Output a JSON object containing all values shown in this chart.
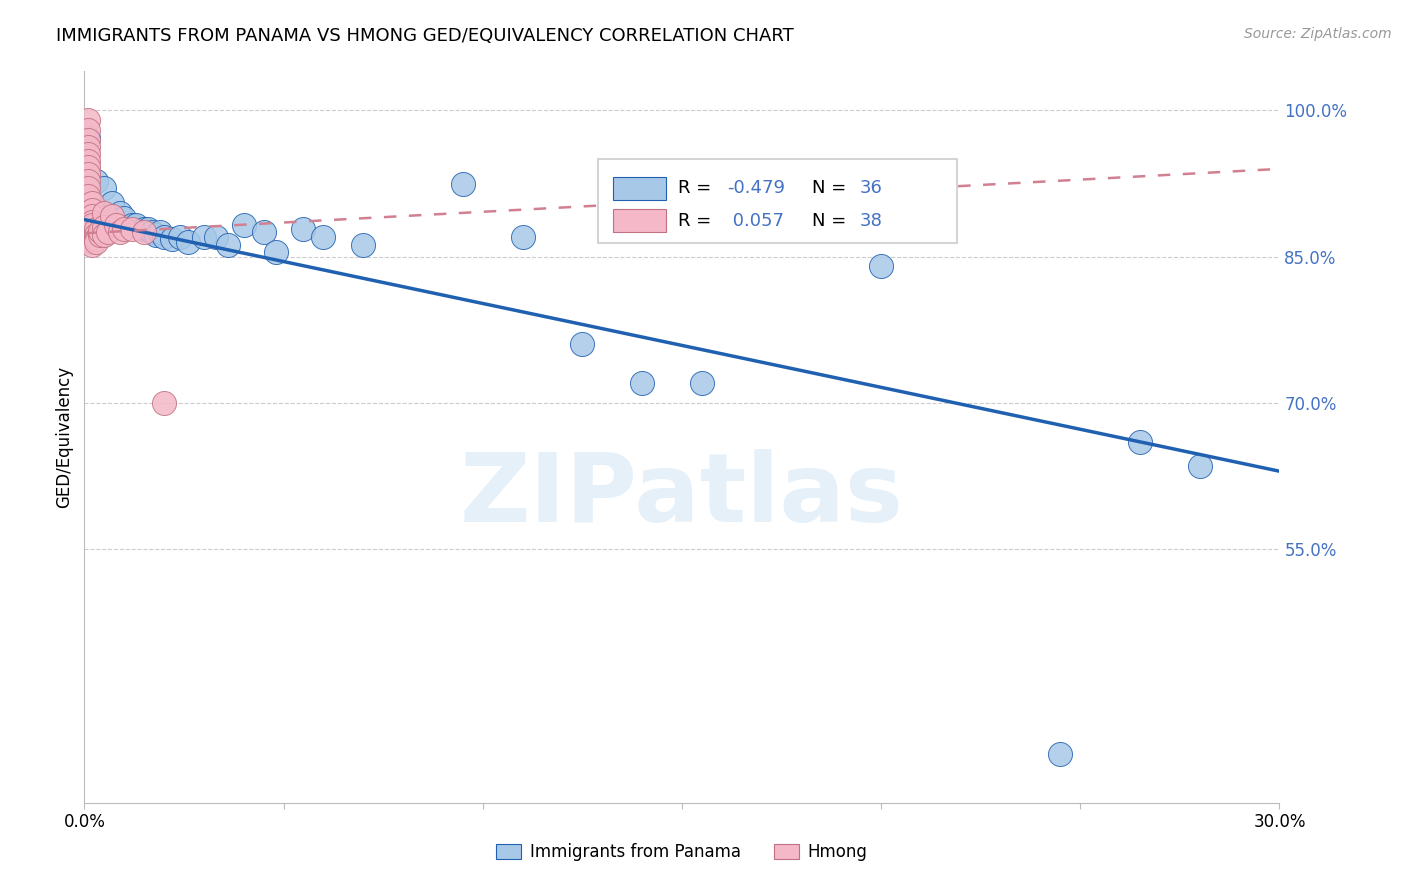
{
  "title": "IMMIGRANTS FROM PANAMA VS HMONG GED/EQUIVALENCY CORRELATION CHART",
  "source": "Source: ZipAtlas.com",
  "ylabel": "GED/Equivalency",
  "xlim": [
    0.0,
    0.3
  ],
  "ylim": [
    0.29,
    1.04
  ],
  "xticks": [
    0.0,
    0.05,
    0.1,
    0.15,
    0.2,
    0.25,
    0.3
  ],
  "xticklabels": [
    "0.0%",
    "",
    "",
    "",
    "",
    "",
    "30.0%"
  ],
  "yticks_right": [
    0.55,
    0.7,
    0.85,
    1.0
  ],
  "ytick_right_labels": [
    "55.0%",
    "70.0%",
    "85.0%",
    "100.0%"
  ],
  "legend_label1": "Immigrants from Panama",
  "legend_label2": "Hmong",
  "blue_color": "#a8c8e8",
  "pink_color": "#f4b8c8",
  "line_blue": "#2060b0",
  "line_pink": "#d08090",
  "watermark": "ZIPatlas",
  "panama_x": [
    0.001,
    0.003,
    0.005,
    0.007,
    0.009,
    0.01,
    0.012,
    0.013,
    0.015,
    0.016,
    0.017,
    0.018,
    0.019,
    0.02,
    0.022,
    0.024,
    0.026,
    0.03,
    0.033,
    0.036,
    0.04,
    0.045,
    0.048,
    0.055,
    0.06,
    0.07,
    0.095,
    0.11,
    0.125,
    0.14,
    0.155,
    0.165,
    0.2,
    0.245,
    0.265,
    0.28
  ],
  "panama_y": [
    0.972,
    0.928,
    0.92,
    0.905,
    0.895,
    0.89,
    0.882,
    0.882,
    0.878,
    0.878,
    0.875,
    0.872,
    0.875,
    0.87,
    0.868,
    0.87,
    0.865,
    0.87,
    0.87,
    0.862,
    0.882,
    0.875,
    0.855,
    0.878,
    0.87,
    0.862,
    0.925,
    0.87,
    0.76,
    0.72,
    0.72,
    0.878,
    0.84,
    0.34,
    0.66,
    0.635
  ],
  "hmong_x": [
    0.001,
    0.001,
    0.001,
    0.001,
    0.001,
    0.001,
    0.001,
    0.001,
    0.001,
    0.001,
    0.001,
    0.002,
    0.002,
    0.002,
    0.002,
    0.002,
    0.002,
    0.002,
    0.002,
    0.002,
    0.002,
    0.003,
    0.003,
    0.003,
    0.003,
    0.004,
    0.004,
    0.005,
    0.005,
    0.005,
    0.006,
    0.007,
    0.008,
    0.009,
    0.01,
    0.012,
    0.015,
    0.02
  ],
  "hmong_y": [
    0.99,
    0.98,
    0.97,
    0.962,
    0.955,
    0.948,
    0.942,
    0.935,
    0.928,
    0.92,
    0.912,
    0.905,
    0.898,
    0.892,
    0.886,
    0.88,
    0.875,
    0.87,
    0.865,
    0.862,
    0.882,
    0.878,
    0.872,
    0.868,
    0.865,
    0.872,
    0.876,
    0.895,
    0.88,
    0.872,
    0.875,
    0.892,
    0.882,
    0.875,
    0.878,
    0.878,
    0.875,
    0.7
  ],
  "blue_line_x0": 0.0,
  "blue_line_y0": 0.888,
  "blue_line_x1": 0.3,
  "blue_line_y1": 0.63,
  "pink_line_x0": 0.0,
  "pink_line_y0": 0.874,
  "pink_line_x1": 0.3,
  "pink_line_y1": 0.94
}
